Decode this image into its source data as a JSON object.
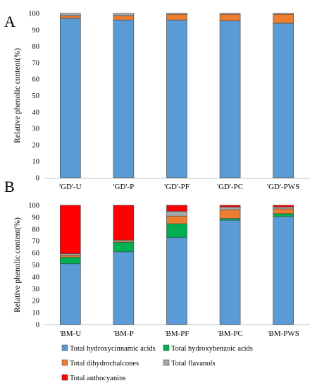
{
  "colors": {
    "hydroxycinnamic": "#5B9BD5",
    "hydroxybenzoic": "#00B050",
    "dihydrochalcones": "#ED7D31",
    "flavanols": "#A5A5A5",
    "anthocyanins": "#FF0000"
  },
  "legend": [
    {
      "label": "Total hydroxycinnamic acids",
      "color": "#5B9BD5"
    },
    {
      "label": "Total hydroxybenzoic acids",
      "color": "#00B050"
    },
    {
      "label": "Total dihydrochalcones",
      "color": "#ED7D31"
    },
    {
      "label": "Total flavanols",
      "color": "#A5A5A5"
    },
    {
      "label": "Total anthocyanins",
      "color": "#FF0000"
    }
  ],
  "chart_data": [
    {
      "type": "bar",
      "stacked": true,
      "panel": "A",
      "ylabel": "Relative phenolic content(%)",
      "ylim": [
        0,
        100
      ],
      "yticks": [
        0,
        10,
        20,
        30,
        40,
        50,
        60,
        70,
        80,
        90,
        100
      ],
      "grid": false,
      "categories": [
        "'GD'-U",
        "'GD'-P",
        "'GD'-PF",
        "'GD'-PC",
        "'GD'-PWS"
      ],
      "series": [
        {
          "name": "Total hydroxycinnamic acids",
          "values": [
            97,
            96,
            96,
            95.5,
            94
          ]
        },
        {
          "name": "Total hydroxybenzoic acids",
          "values": [
            0,
            0,
            0,
            0,
            0
          ]
        },
        {
          "name": "Total dihydrochalcones",
          "values": [
            1.5,
            2.5,
            3.5,
            4,
            5.5
          ]
        },
        {
          "name": "Total flavanols",
          "values": [
            1.5,
            1.5,
            0.5,
            0.5,
            0.5
          ]
        },
        {
          "name": "Total anthocyanins",
          "values": [
            0,
            0,
            0,
            0,
            0
          ]
        }
      ]
    },
    {
      "type": "bar",
      "stacked": true,
      "panel": "B",
      "ylabel": "Relative phenolic content(%)",
      "ylim": [
        0,
        100
      ],
      "yticks": [
        0,
        10,
        20,
        30,
        40,
        50,
        60,
        70,
        80,
        90,
        100
      ],
      "grid": false,
      "categories": [
        "'BM-U",
        "'BM-P",
        "'BM-PF",
        "'BM-PC",
        "'BM-PWS"
      ],
      "series": [
        {
          "name": "Total hydroxycinnamic acids",
          "values": [
            51,
            61,
            73,
            87.5,
            90.5
          ]
        },
        {
          "name": "Total hydroxybenzoic acids",
          "values": [
            5.5,
            8,
            11.5,
            1.5,
            2.5
          ]
        },
        {
          "name": "Total dihydrochalcones",
          "values": [
            1.5,
            1,
            6.5,
            7,
            4
          ]
        },
        {
          "name": "Total flavanols",
          "values": [
            1.5,
            1,
            4,
            2.5,
            1.5
          ]
        },
        {
          "name": "Total anthocyanins",
          "values": [
            40.5,
            29,
            5,
            1.5,
            1.5
          ]
        }
      ]
    }
  ]
}
